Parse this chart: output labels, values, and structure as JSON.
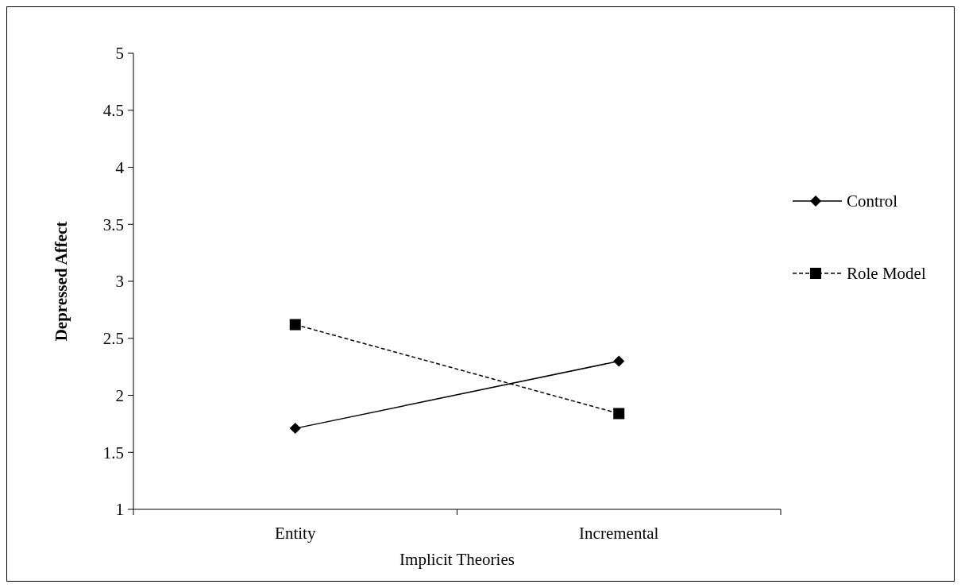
{
  "chart_data": {
    "type": "line",
    "xlabel": "Implicit Theories",
    "ylabel": "Depressed Affect",
    "categories": [
      "Entity",
      "Incremental"
    ],
    "ylim": [
      1,
      5
    ],
    "yticks": [
      1,
      1.5,
      2,
      2.5,
      3,
      3.5,
      4,
      4.5,
      5
    ],
    "legend": "right",
    "grid": false,
    "series": [
      {
        "name": "Control",
        "color": "#000000",
        "values": [
          1.71,
          2.3
        ],
        "marker": "diamond",
        "line_style": "solid"
      },
      {
        "name": "Role Model",
        "color": "#000000",
        "values": [
          2.62,
          1.84
        ],
        "marker": "square",
        "line_style": "dashed"
      }
    ]
  }
}
